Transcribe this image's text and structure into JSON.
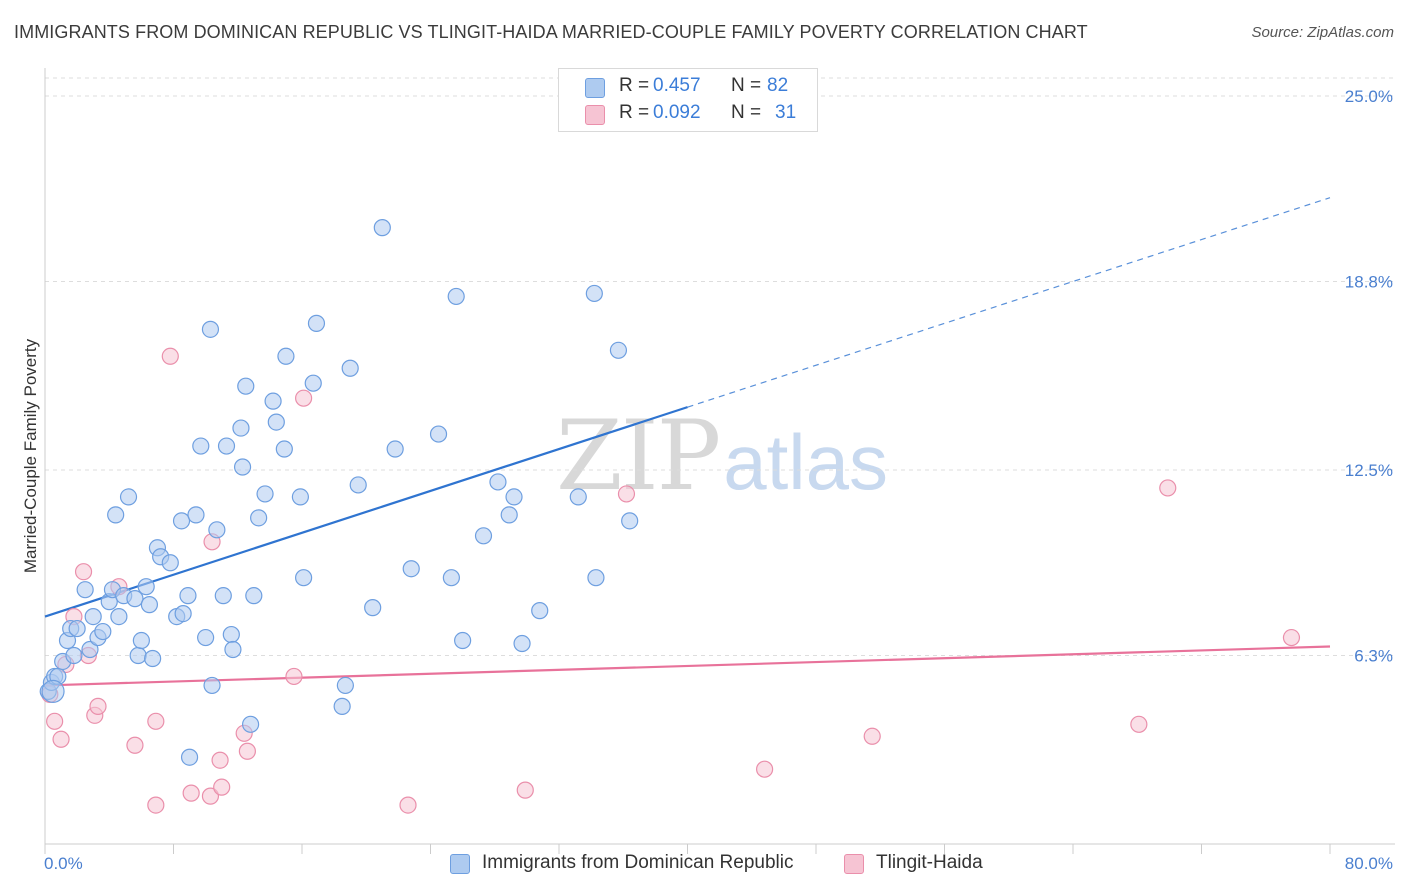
{
  "title": "IMMIGRANTS FROM DOMINICAN REPUBLIC VS TLINGIT-HAIDA MARRIED-COUPLE FAMILY POVERTY CORRELATION CHART",
  "source": "Source: ZipAtlas.com",
  "watermark": {
    "zip": "ZIP",
    "atlas": "atlas"
  },
  "colors": {
    "blue_fill": "#aecbf0",
    "blue_stroke": "#6e9fe0",
    "blue_line": "#2f74d0",
    "pink_fill": "#f6c4d3",
    "pink_stroke": "#ea8fab",
    "pink_line": "#e8729a",
    "grid": "#dddddd",
    "tick_label": "#4a7fcf"
  },
  "legend": {
    "series": [
      {
        "r_label": "R =",
        "r_value": "0.457",
        "n_label": "N =",
        "n_value": "82"
      },
      {
        "r_label": "R =",
        "r_value": "0.092",
        "n_label": "N =",
        "n_value": "31"
      }
    ]
  },
  "bottom_legend": {
    "blue_label": "Immigrants from Dominican Republic",
    "pink_label": "Tlingit-Haida"
  },
  "chart_data": {
    "type": "scatter",
    "title": "IMMIGRANTS FROM DOMINICAN REPUBLIC VS TLINGIT-HAIDA MARRIED-COUPLE FAMILY POVERTY CORRELATION CHART",
    "xlabel": "",
    "ylabel": "Married-Couple Family Poverty",
    "xlim": [
      0,
      80
    ],
    "ylim": [
      0,
      25.6
    ],
    "x_tick_labels": [
      "0.0%",
      "80.0%"
    ],
    "y_ticks": [
      6.3,
      12.5,
      18.8,
      25.0
    ],
    "y_tick_labels": [
      "6.3%",
      "12.5%",
      "18.8%",
      "25.0%"
    ],
    "grid": true,
    "series": [
      {
        "name": "Immigrants from Dominican Republic",
        "color": "#6e9fe0",
        "trend": {
          "x0": 0,
          "y0": 7.6,
          "x1": 40,
          "y1": 14.6,
          "dashed_to_x": 80,
          "dashed_to_y": 21.6
        },
        "points": [
          [
            0.2,
            5.1
          ],
          [
            0.4,
            5.4
          ],
          [
            0.6,
            5.6
          ],
          [
            0.8,
            5.6
          ],
          [
            1.1,
            6.1
          ],
          [
            1.4,
            6.8
          ],
          [
            1.6,
            7.2
          ],
          [
            1.8,
            6.3
          ],
          [
            2.0,
            7.2
          ],
          [
            2.5,
            8.5
          ],
          [
            2.8,
            6.5
          ],
          [
            3.0,
            7.6
          ],
          [
            3.3,
            6.9
          ],
          [
            3.6,
            7.1
          ],
          [
            4.0,
            8.1
          ],
          [
            4.2,
            8.5
          ],
          [
            4.4,
            11.0
          ],
          [
            4.6,
            7.6
          ],
          [
            4.9,
            8.3
          ],
          [
            5.2,
            11.6
          ],
          [
            5.6,
            8.2
          ],
          [
            5.8,
            6.3
          ],
          [
            6.0,
            6.8
          ],
          [
            6.3,
            8.6
          ],
          [
            6.5,
            8.0
          ],
          [
            6.7,
            6.2
          ],
          [
            7.0,
            9.9
          ],
          [
            7.2,
            9.6
          ],
          [
            7.8,
            9.4
          ],
          [
            8.2,
            7.6
          ],
          [
            8.5,
            10.8
          ],
          [
            8.6,
            7.7
          ],
          [
            8.9,
            8.3
          ],
          [
            9.4,
            11.0
          ],
          [
            9.7,
            13.3
          ],
          [
            10.0,
            6.9
          ],
          [
            10.3,
            17.2
          ],
          [
            10.4,
            5.3
          ],
          [
            10.7,
            10.5
          ],
          [
            11.1,
            8.3
          ],
          [
            11.3,
            13.3
          ],
          [
            11.6,
            7.0
          ],
          [
            11.7,
            6.5
          ],
          [
            12.2,
            13.9
          ],
          [
            12.3,
            12.6
          ],
          [
            12.5,
            15.3
          ],
          [
            12.8,
            4.0
          ],
          [
            13.0,
            8.3
          ],
          [
            13.3,
            10.9
          ],
          [
            13.7,
            11.7
          ],
          [
            14.2,
            14.8
          ],
          [
            14.4,
            14.1
          ],
          [
            14.9,
            13.2
          ],
          [
            15.0,
            16.3
          ],
          [
            15.9,
            11.6
          ],
          [
            16.1,
            8.9
          ],
          [
            16.7,
            15.4
          ],
          [
            16.9,
            17.4
          ],
          [
            18.5,
            4.6
          ],
          [
            18.7,
            5.3
          ],
          [
            19.0,
            15.9
          ],
          [
            19.5,
            12.0
          ],
          [
            20.4,
            7.9
          ],
          [
            21.0,
            20.6
          ],
          [
            21.8,
            13.2
          ],
          [
            22.8,
            9.2
          ],
          [
            24.5,
            13.7
          ],
          [
            25.3,
            8.9
          ],
          [
            25.6,
            18.3
          ],
          [
            26.0,
            6.8
          ],
          [
            27.3,
            10.3
          ],
          [
            28.2,
            12.1
          ],
          [
            28.9,
            11.0
          ],
          [
            29.2,
            11.6
          ],
          [
            29.7,
            6.7
          ],
          [
            30.8,
            7.8
          ],
          [
            33.2,
            11.6
          ],
          [
            34.2,
            18.4
          ],
          [
            34.3,
            8.9
          ],
          [
            35.7,
            16.5
          ],
          [
            36.4,
            10.8
          ],
          [
            9.0,
            2.9
          ]
        ]
      },
      {
        "name": "Tlingit-Haida",
        "color": "#ea8fab",
        "trend": {
          "x0": 0,
          "y0": 5.3,
          "x1": 80,
          "y1": 6.6
        },
        "points": [
          [
            0.3,
            5.0
          ],
          [
            0.6,
            4.1
          ],
          [
            1.0,
            3.5
          ],
          [
            1.3,
            6.0
          ],
          [
            1.8,
            7.6
          ],
          [
            2.4,
            9.1
          ],
          [
            2.7,
            6.3
          ],
          [
            3.1,
            4.3
          ],
          [
            3.3,
            4.6
          ],
          [
            4.6,
            8.6
          ],
          [
            5.6,
            3.3
          ],
          [
            6.9,
            1.3
          ],
          [
            6.9,
            4.1
          ],
          [
            7.8,
            16.3
          ],
          [
            9.1,
            1.7
          ],
          [
            10.3,
            1.6
          ],
          [
            10.4,
            10.1
          ],
          [
            10.9,
            2.8
          ],
          [
            11.0,
            1.9
          ],
          [
            12.4,
            3.7
          ],
          [
            12.6,
            3.1
          ],
          [
            15.5,
            5.6
          ],
          [
            16.1,
            14.9
          ],
          [
            22.6,
            1.3
          ],
          [
            29.9,
            1.8
          ],
          [
            36.2,
            11.7
          ],
          [
            44.8,
            2.5
          ],
          [
            51.5,
            3.6
          ],
          [
            68.1,
            4.0
          ],
          [
            69.9,
            11.9
          ],
          [
            77.6,
            6.9
          ]
        ]
      }
    ]
  }
}
